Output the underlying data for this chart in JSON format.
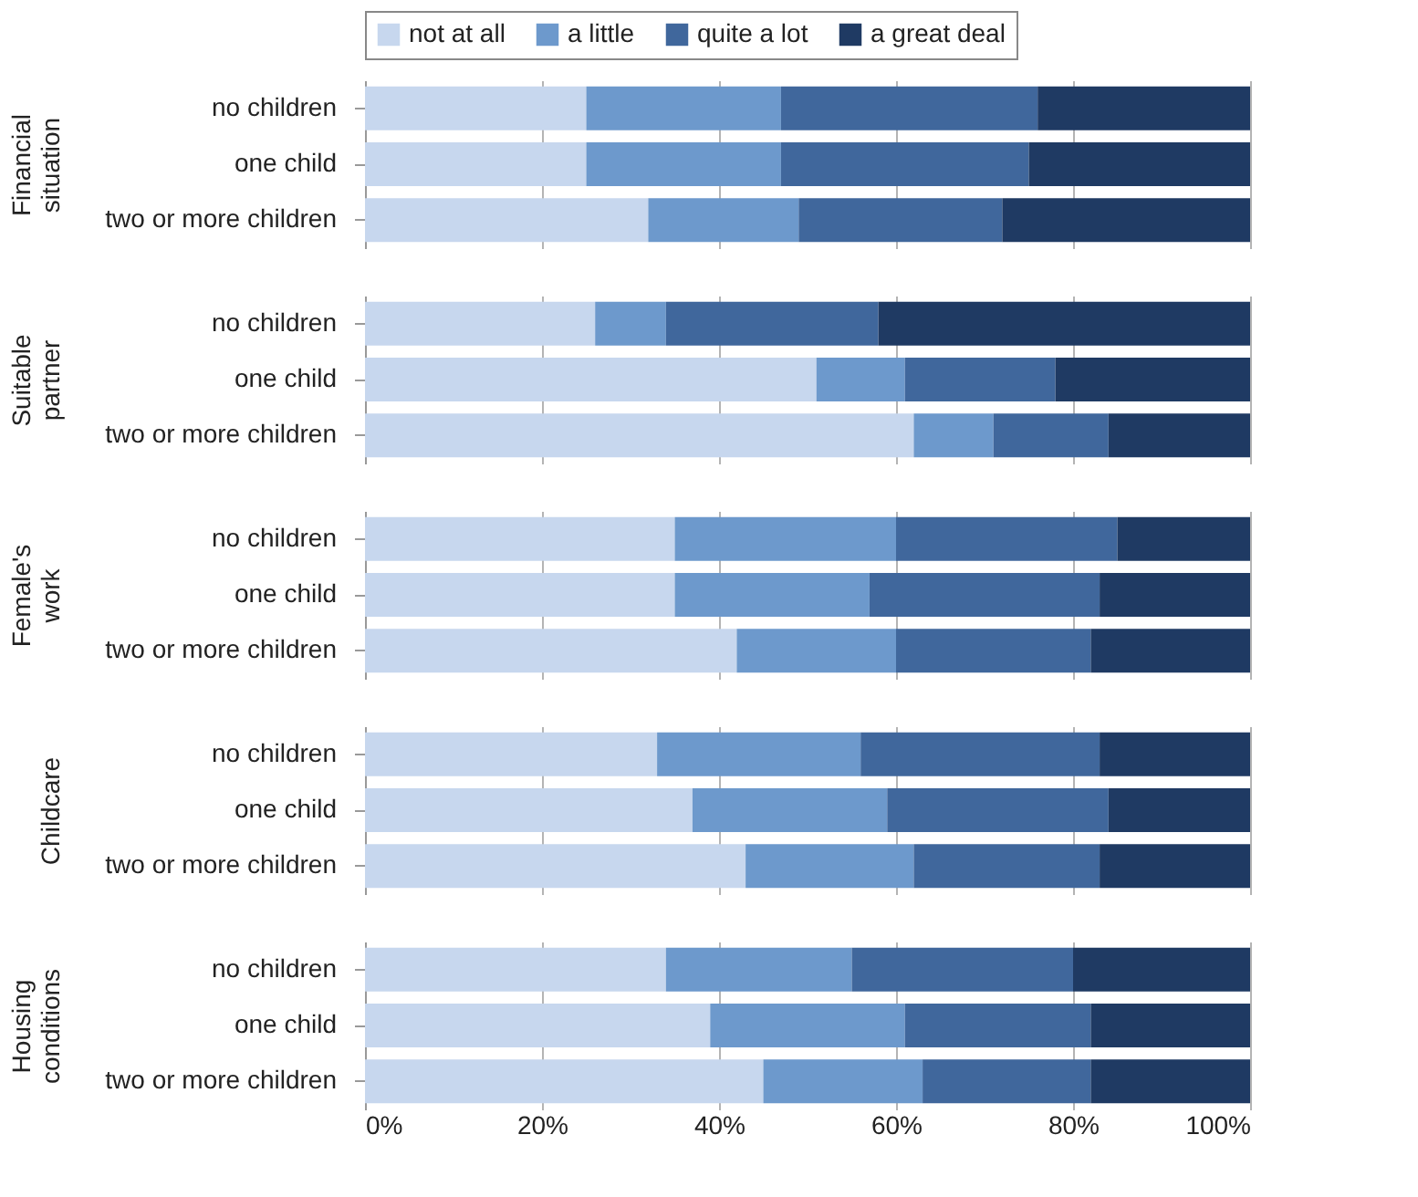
{
  "chart_data": [
    {
      "type": "bar",
      "orientation": "horizontal",
      "stacked": true,
      "ylabel": "Financial situation",
      "categories": [
        "no children",
        "one child",
        "two or more children"
      ],
      "legend": "top",
      "grid": "x",
      "tick_labels": "y",
      "xlim": [
        0,
        100
      ],
      "xticks": [
        {
          "value": 0,
          "label": null
        },
        {
          "value": 20,
          "label": null
        },
        {
          "value": 40,
          "label": null
        },
        {
          "value": 60,
          "label": null
        },
        {
          "value": 80,
          "label": null
        },
        {
          "value": 100,
          "label": null
        }
      ],
      "series": [
        {
          "name": "not at all",
          "color": "#c7d7ee",
          "values": [
            25,
            25,
            32
          ]
        },
        {
          "name": "a little",
          "color": "#6d99cc",
          "values": [
            22,
            22,
            17
          ]
        },
        {
          "name": "quite a lot",
          "color": "#40679c",
          "values": [
            29,
            28,
            23
          ]
        },
        {
          "name": "a great deal",
          "color": "#1f3a63",
          "values": [
            24,
            25,
            28
          ]
        }
      ]
    },
    {
      "type": "bar",
      "orientation": "horizontal",
      "stacked": true,
      "ylabel": "Suitable partner",
      "categories": [
        "no children",
        "one child",
        "two or more children"
      ],
      "grid": "x",
      "tick_labels": "y",
      "xlim": [
        0,
        100
      ],
      "xticks": [
        {
          "value": 0,
          "label": null
        },
        {
          "value": 20,
          "label": null
        },
        {
          "value": 40,
          "label": null
        },
        {
          "value": 60,
          "label": null
        },
        {
          "value": 80,
          "label": null
        },
        {
          "value": 100,
          "label": null
        }
      ],
      "series": [
        {
          "color": "#c7d7ee",
          "values": [
            26,
            51,
            62
          ]
        },
        {
          "color": "#6d99cc",
          "values": [
            8,
            10,
            9
          ]
        },
        {
          "color": "#40679c",
          "values": [
            24,
            17,
            13
          ]
        },
        {
          "color": "#1f3a63",
          "values": [
            42,
            22,
            16
          ]
        }
      ]
    },
    {
      "type": "bar",
      "orientation": "horizontal",
      "stacked": true,
      "ylabel": "Female's work",
      "categories": [
        "no children",
        "one child",
        "two or more children"
      ],
      "grid": "x",
      "tick_labels": "y",
      "xlim": [
        0,
        100
      ],
      "xticks": [
        {
          "value": 0,
          "label": null
        },
        {
          "value": 20,
          "label": null
        },
        {
          "value": 40,
          "label": null
        },
        {
          "value": 60,
          "label": null
        },
        {
          "value": 80,
          "label": null
        },
        {
          "value": 100,
          "label": null
        }
      ],
      "series": [
        {
          "color": "#c7d7ee",
          "values": [
            35,
            35,
            42
          ]
        },
        {
          "color": "#6d99cc",
          "values": [
            25,
            22,
            18
          ]
        },
        {
          "color": "#40679c",
          "values": [
            25,
            26,
            22
          ]
        },
        {
          "color": "#1f3a63",
          "values": [
            15,
            17,
            18
          ]
        }
      ]
    },
    {
      "type": "bar",
      "orientation": "horizontal",
      "stacked": true,
      "ylabel": "Childcare",
      "categories": [
        "no children",
        "one child",
        "two or more children"
      ],
      "grid": "x",
      "tick_labels": "y",
      "xlim": [
        0,
        100
      ],
      "xticks": [
        {
          "value": 0,
          "label": null
        },
        {
          "value": 20,
          "label": null
        },
        {
          "value": 40,
          "label": null
        },
        {
          "value": 60,
          "label": null
        },
        {
          "value": 80,
          "label": null
        },
        {
          "value": 100,
          "label": null
        }
      ],
      "series": [
        {
          "color": "#c7d7ee",
          "values": [
            33,
            37,
            43
          ]
        },
        {
          "color": "#6d99cc",
          "values": [
            23,
            22,
            19
          ]
        },
        {
          "color": "#40679c",
          "values": [
            27,
            25,
            21
          ]
        },
        {
          "color": "#1f3a63",
          "values": [
            17,
            16,
            17
          ]
        }
      ]
    },
    {
      "type": "bar",
      "orientation": "horizontal",
      "stacked": true,
      "ylabel": "Housing conditions",
      "categories": [
        "no children",
        "one child",
        "two or more children"
      ],
      "grid": "x",
      "xlim": [
        0,
        100
      ],
      "xticks": [
        {
          "value": 0,
          "label": "0%"
        },
        {
          "value": 20,
          "label": "20%"
        },
        {
          "value": 40,
          "label": "40%"
        },
        {
          "value": 60,
          "label": "60%"
        },
        {
          "value": 80,
          "label": "80%"
        },
        {
          "value": 100,
          "label": "100%"
        }
      ],
      "series": [
        {
          "color": "#c7d7ee",
          "values": [
            34,
            39,
            45
          ]
        },
        {
          "color": "#6d99cc",
          "values": [
            21,
            22,
            18
          ]
        },
        {
          "color": "#40679c",
          "values": [
            25,
            21,
            19
          ]
        },
        {
          "color": "#1f3a63",
          "values": [
            20,
            18,
            18
          ]
        }
      ]
    }
  ]
}
